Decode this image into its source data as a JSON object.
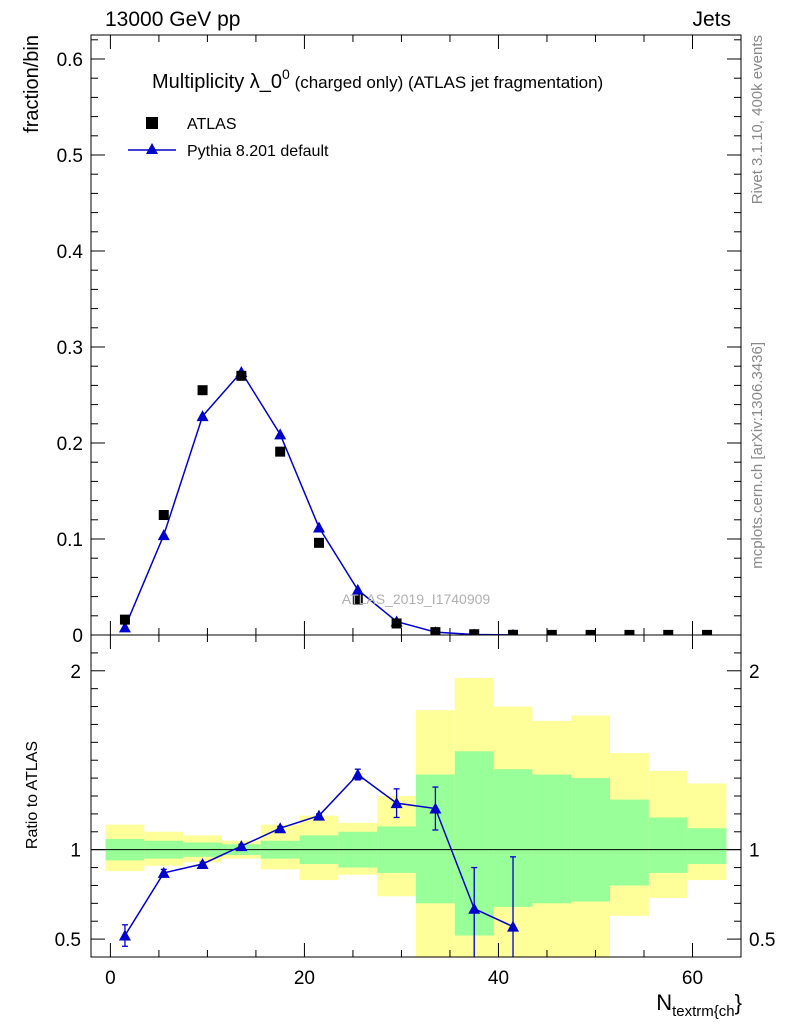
{
  "header": {
    "left": "13000 GeV pp",
    "right": "Jets"
  },
  "side_labels": {
    "rivet": "Rivet 3.1.10,  400k events",
    "mcplots": "mcplots.cern.ch [arXiv:1306.3436]"
  },
  "title": {
    "prefix": "Multiplicity λ_0",
    "superscript": "0",
    "suffix": " (charged only) (ATLAS jet fragmentation)"
  },
  "watermark": "ATLAS_2019_I1740909",
  "colors": {
    "data": "#000000",
    "mc": "#0000cc",
    "band_inner": "#99ff99",
    "band_outer": "#ffff99"
  },
  "chart_data": [
    {
      "type": "scatter",
      "ylabel": "fraction/bin",
      "xlim": [
        -2,
        65
      ],
      "ylim": [
        0,
        0.625
      ],
      "yticks": [
        0,
        0.1,
        0.2,
        0.3,
        0.4,
        0.5,
        0.6
      ],
      "ytick_labels": [
        "0",
        "0.1",
        "0.2",
        "0.3",
        "0.4",
        "0.5",
        "0.6"
      ],
      "legend": [
        "ATLAS",
        "Pythia 8.201 default"
      ],
      "legend_position": "top-left",
      "series": [
        {
          "name": "ATLAS",
          "marker": "square",
          "x": [
            1.5,
            5.5,
            9.5,
            13.5,
            17.5,
            21.5,
            25.5,
            29.5,
            33.5,
            37.5,
            41.5,
            45.5,
            49.5,
            53.5,
            57.5,
            61.5
          ],
          "y": [
            0.016,
            0.125,
            0.255,
            0.27,
            0.191,
            0.096,
            0.037,
            0.012,
            0.003,
            0.0008,
            0.0002,
            0.0001,
            0.0001,
            0.0001,
            0.0001,
            0.0001
          ]
        },
        {
          "name": "Pythia 8.201 default",
          "marker": "triangle",
          "x": [
            1.5,
            5.5,
            9.5,
            13.5,
            17.5,
            21.5,
            25.5,
            29.5,
            33.5,
            37.5,
            41.5
          ],
          "y": [
            0.008,
            0.104,
            0.228,
            0.274,
            0.209,
            0.112,
            0.047,
            0.014,
            0.003,
            0.0005,
            0.0001
          ]
        }
      ]
    },
    {
      "type": "line",
      "ylabel": "Ratio to ATLAS",
      "xlabel_main": "N",
      "xlabel_sub": "textrm{ch",
      "xlabel_suffix": "}",
      "xlim": [
        -2,
        65
      ],
      "ylim": [
        0.4,
        2.2
      ],
      "yticks": [
        0.5,
        1,
        2
      ],
      "ytick_labels": [
        "0.5",
        "1",
        "2"
      ],
      "xticks": [
        0,
        20,
        40,
        60
      ],
      "xtick_labels": [
        "0",
        "20",
        "40",
        "60"
      ],
      "bins": [
        [
          -0.5,
          3.5
        ],
        [
          3.5,
          7.5
        ],
        [
          7.5,
          11.5
        ],
        [
          11.5,
          15.5
        ],
        [
          15.5,
          19.5
        ],
        [
          19.5,
          23.5
        ],
        [
          23.5,
          27.5
        ],
        [
          27.5,
          31.5
        ],
        [
          31.5,
          35.5
        ],
        [
          35.5,
          39.5
        ],
        [
          39.5,
          43.5
        ],
        [
          43.5,
          47.5
        ],
        [
          47.5,
          51.5
        ],
        [
          51.5,
          55.5
        ],
        [
          55.5,
          59.5
        ],
        [
          59.5,
          63.5
        ]
      ],
      "band_inner": [
        [
          0.94,
          1.06
        ],
        [
          0.95,
          1.05
        ],
        [
          0.96,
          1.04
        ],
        [
          0.97,
          1.03
        ],
        [
          0.95,
          1.05
        ],
        [
          0.92,
          1.08
        ],
        [
          0.9,
          1.1
        ],
        [
          0.87,
          1.13
        ],
        [
          0.7,
          1.42
        ],
        [
          0.52,
          1.55
        ],
        [
          0.68,
          1.45
        ],
        [
          0.7,
          1.42
        ],
        [
          0.71,
          1.4
        ],
        [
          0.8,
          1.28
        ],
        [
          0.87,
          1.18
        ],
        [
          0.92,
          1.12
        ]
      ],
      "band_outer": [
        [
          0.88,
          1.14
        ],
        [
          0.91,
          1.1
        ],
        [
          0.93,
          1.08
        ],
        [
          0.95,
          1.05
        ],
        [
          0.89,
          1.14
        ],
        [
          0.83,
          1.19
        ],
        [
          0.86,
          1.15
        ],
        [
          0.74,
          1.3
        ],
        [
          0.3,
          1.78
        ],
        [
          0.3,
          1.96
        ],
        [
          0.3,
          1.8
        ],
        [
          0.3,
          1.72
        ],
        [
          0.3,
          1.75
        ],
        [
          0.63,
          1.54
        ],
        [
          0.73,
          1.44
        ],
        [
          0.83,
          1.37
        ]
      ],
      "series": [
        {
          "name": "Pythia 8.201 default",
          "x": [
            1.5,
            5.5,
            9.5,
            13.5,
            17.5,
            21.5,
            25.5,
            29.5,
            33.5,
            37.5,
            41.5
          ],
          "y": [
            0.52,
            0.87,
            0.92,
            1.02,
            1.12,
            1.19,
            1.42,
            1.26,
            1.23,
            0.67,
            0.57
          ],
          "err_lo": [
            0.06,
            0.02,
            0.01,
            0.01,
            0.01,
            0.01,
            0.03,
            0.08,
            0.12,
            0.5,
            0.5
          ],
          "err_hi": [
            0.06,
            0.02,
            0.01,
            0.01,
            0.01,
            0.01,
            0.03,
            0.08,
            0.12,
            0.23,
            0.39
          ]
        }
      ]
    }
  ]
}
